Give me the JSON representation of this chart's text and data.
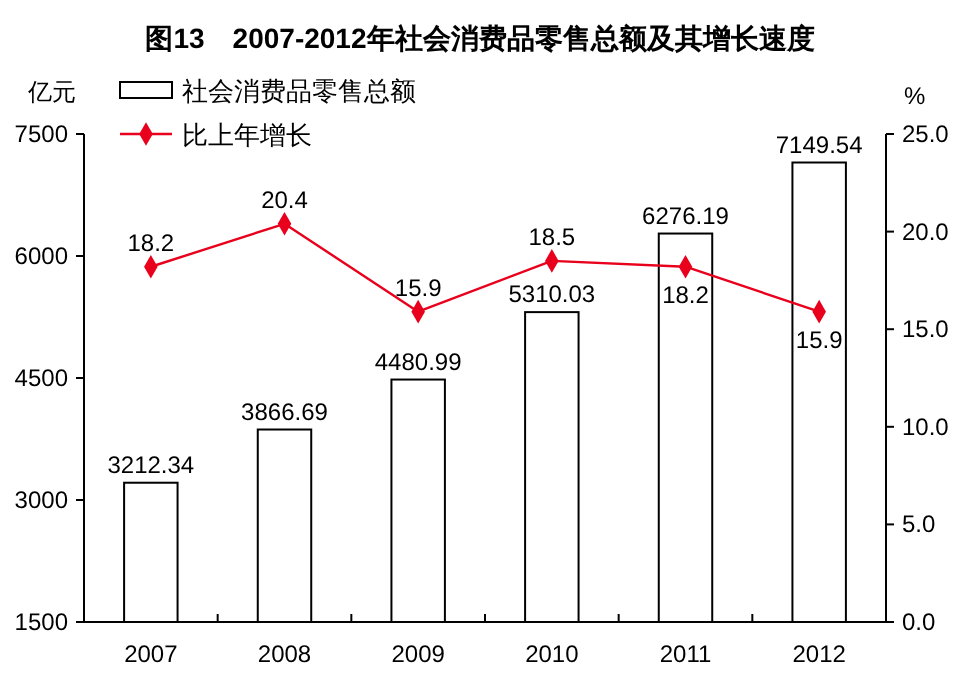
{
  "chart_data": {
    "type": "bar",
    "title": "图13　2007-2012年社会消费品零售总额及其增长速度",
    "ylabel": "亿元",
    "y2label": "%",
    "categories": [
      "2007",
      "2008",
      "2009",
      "2010",
      "2011",
      "2012"
    ],
    "series": [
      {
        "name": "社会消费品零售总额",
        "color": "#ffffff",
        "values": [
          3212.34,
          3866.69,
          4480.99,
          5310.03,
          6276.19,
          7149.54
        ]
      },
      {
        "name": "比上年增长",
        "type": "line",
        "axis": "y2",
        "color": "#e8001c",
        "marker": "diamond",
        "values": [
          18.2,
          20.4,
          15.9,
          18.5,
          18.2,
          15.9
        ]
      }
    ],
    "ylim": [
      1500,
      7500
    ],
    "yticks": [
      1500,
      3000,
      4500,
      6000,
      7500
    ],
    "y2lim": [
      0,
      25
    ],
    "y2ticks": [
      {
        "value": 0,
        "label": "0.0"
      },
      {
        "value": 5,
        "label": "5.0"
      },
      {
        "value": 10,
        "label": "10.0"
      },
      {
        "value": 15,
        "label": "15.0"
      },
      {
        "value": 20,
        "label": "20.0"
      },
      {
        "value": 25,
        "label": "25.0"
      }
    ],
    "data_labels": true,
    "legend": "top left",
    "grid": false
  }
}
